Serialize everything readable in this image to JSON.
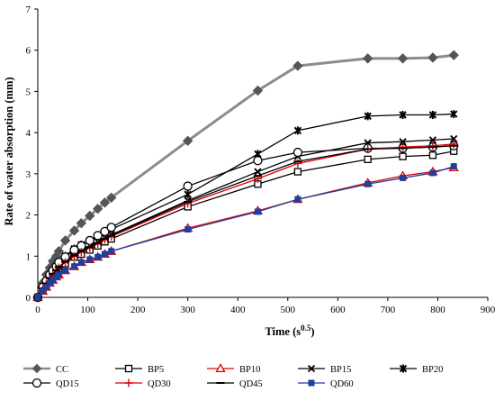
{
  "chart_data": {
    "type": "line",
    "xlabel": "Time (s",
    "xlabel_sup": "0.5",
    "xlabel_end": ")",
    "ylabel": "Rate of water absorption (mm)",
    "xlim": [
      0,
      900
    ],
    "ylim": [
      0,
      7
    ],
    "xticks": [
      "0",
      "100",
      "200",
      "300",
      "400",
      "500",
      "600",
      "700",
      "800",
      "900"
    ],
    "yticks": [
      "0",
      "1",
      "2",
      "3",
      "4",
      "5",
      "6",
      "7"
    ],
    "grid": false,
    "legend_position": "bottom",
    "series": [
      {
        "name": "CC",
        "color": "#8c8c8c",
        "marker": "diamond",
        "x": [
          0,
          10,
          17,
          24,
          30,
          37,
          42,
          55,
          73,
          87,
          104,
          120,
          134,
          147,
          300,
          440,
          520,
          660,
          730,
          790,
          832
        ],
        "y": [
          0,
          0.35,
          0.55,
          0.72,
          0.88,
          1.0,
          1.12,
          1.38,
          1.62,
          1.8,
          1.98,
          2.15,
          2.3,
          2.42,
          3.8,
          5.02,
          5.62,
          5.8,
          5.8,
          5.82,
          5.88
        ]
      },
      {
        "name": "BP5",
        "color": "#000000",
        "marker": "square-open",
        "x": [
          0,
          10,
          17,
          24,
          30,
          37,
          42,
          55,
          73,
          87,
          104,
          120,
          134,
          147,
          300,
          440,
          520,
          660,
          730,
          790,
          832
        ],
        "y": [
          0,
          0.2,
          0.32,
          0.45,
          0.55,
          0.62,
          0.7,
          0.82,
          0.98,
          1.05,
          1.15,
          1.25,
          1.35,
          1.42,
          2.2,
          2.75,
          3.05,
          3.35,
          3.42,
          3.45,
          3.55
        ]
      },
      {
        "name": "BP10",
        "color": "#e00000",
        "marker": "triangle-open",
        "x": [
          0,
          10,
          17,
          24,
          30,
          37,
          42,
          55,
          73,
          87,
          104,
          120,
          134,
          147,
          300,
          440,
          520,
          660,
          730,
          790,
          832
        ],
        "y": [
          0,
          0.15,
          0.25,
          0.35,
          0.42,
          0.5,
          0.55,
          0.65,
          0.75,
          0.85,
          0.92,
          0.98,
          1.05,
          1.12,
          1.68,
          2.1,
          2.38,
          2.78,
          2.95,
          3.05,
          3.15
        ]
      },
      {
        "name": "BP15",
        "color": "#000000",
        "marker": "x",
        "x": [
          0,
          10,
          17,
          24,
          30,
          37,
          42,
          55,
          73,
          87,
          104,
          120,
          134,
          147,
          300,
          440,
          520,
          660,
          730,
          790,
          832
        ],
        "y": [
          0,
          0.22,
          0.35,
          0.48,
          0.58,
          0.68,
          0.75,
          0.9,
          1.05,
          1.15,
          1.25,
          1.35,
          1.45,
          1.52,
          2.35,
          3.05,
          3.42,
          3.75,
          3.78,
          3.82,
          3.85
        ]
      },
      {
        "name": "BP20",
        "color": "#000000",
        "marker": "star",
        "x": [
          0,
          10,
          17,
          24,
          30,
          37,
          42,
          55,
          73,
          87,
          104,
          120,
          134,
          147,
          300,
          440,
          520,
          660,
          730,
          790,
          832
        ],
        "y": [
          0,
          0.25,
          0.4,
          0.55,
          0.65,
          0.75,
          0.85,
          1.0,
          1.18,
          1.28,
          1.38,
          1.48,
          1.58,
          1.65,
          2.5,
          3.48,
          4.05,
          4.4,
          4.43,
          4.43,
          4.45
        ]
      },
      {
        "name": "QD15",
        "color": "#000000",
        "marker": "circle-open",
        "x": [
          0,
          10,
          17,
          24,
          30,
          37,
          42,
          55,
          73,
          87,
          104,
          120,
          134,
          147,
          300,
          440,
          520,
          660,
          730,
          790,
          832
        ],
        "y": [
          0,
          0.25,
          0.4,
          0.55,
          0.65,
          0.75,
          0.85,
          0.98,
          1.15,
          1.25,
          1.38,
          1.5,
          1.6,
          1.7,
          2.7,
          3.32,
          3.52,
          3.62,
          3.62,
          3.65,
          3.68
        ]
      },
      {
        "name": "QD30",
        "color": "#e00000",
        "marker": "plus",
        "x": [
          0,
          10,
          17,
          24,
          30,
          37,
          42,
          55,
          73,
          87,
          104,
          120,
          134,
          147,
          300,
          440,
          520,
          660,
          730,
          790,
          832
        ],
        "y": [
          0,
          0.2,
          0.32,
          0.45,
          0.55,
          0.65,
          0.72,
          0.85,
          1.0,
          1.1,
          1.2,
          1.3,
          1.4,
          1.48,
          2.28,
          2.88,
          3.25,
          3.6,
          3.65,
          3.68,
          3.72
        ]
      },
      {
        "name": "QD45",
        "color": "#000000",
        "marker": "dash",
        "x": [
          0,
          10,
          17,
          24,
          30,
          37,
          42,
          55,
          73,
          87,
          104,
          120,
          134,
          147,
          300,
          440,
          520,
          660,
          730,
          790,
          832
        ],
        "y": [
          0,
          0.22,
          0.34,
          0.47,
          0.57,
          0.66,
          0.74,
          0.87,
          1.02,
          1.12,
          1.22,
          1.32,
          1.42,
          1.5,
          2.32,
          2.95,
          3.3,
          3.6,
          3.62,
          3.65,
          3.68
        ]
      },
      {
        "name": "QD60",
        "color": "#1f3f9f",
        "marker": "square-filled",
        "x": [
          0,
          10,
          17,
          24,
          30,
          37,
          42,
          55,
          73,
          87,
          104,
          120,
          134,
          147,
          300,
          440,
          520,
          660,
          730,
          790,
          832
        ],
        "y": [
          0,
          0.15,
          0.25,
          0.35,
          0.42,
          0.5,
          0.55,
          0.65,
          0.75,
          0.85,
          0.92,
          0.98,
          1.05,
          1.12,
          1.65,
          2.08,
          2.38,
          2.75,
          2.9,
          3.02,
          3.18
        ]
      }
    ]
  }
}
